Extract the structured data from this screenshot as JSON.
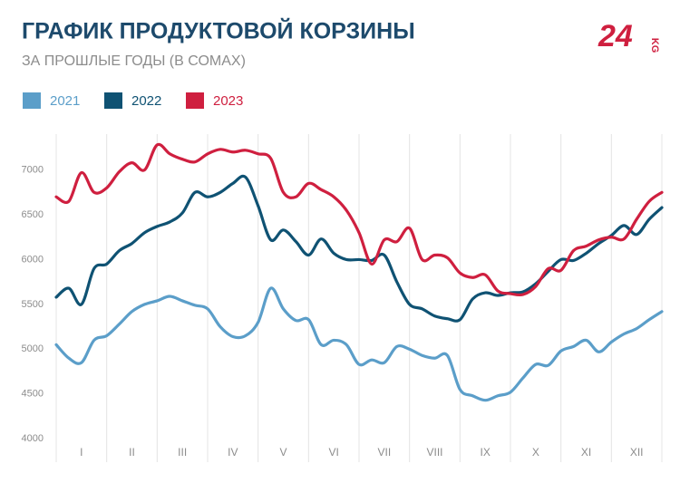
{
  "chart_data": {
    "type": "line",
    "title": "ГРАФИК ПРОДУКТОВОЙ КОРЗИНЫ",
    "subtitle": "ЗА ПРОШЛЫЕ ГОДЫ (В СОМАХ)",
    "logo": {
      "number": "24",
      "suffix": "KG"
    },
    "x": [
      0,
      0.25,
      0.5,
      0.75,
      1,
      1.25,
      1.5,
      1.75,
      2,
      2.25,
      2.5,
      2.75,
      3,
      3.25,
      3.5,
      3.75,
      4,
      4.25,
      4.5,
      4.75,
      5,
      5.25,
      5.5,
      5.75,
      6,
      6.25,
      6.5,
      6.75,
      7,
      7.25,
      7.5,
      7.75,
      8,
      8.25,
      8.5,
      8.75,
      9,
      9.25,
      9.5,
      9.75,
      10,
      10.25,
      10.5,
      10.75,
      11,
      11.25,
      11.5,
      11.75,
      12
    ],
    "xlim": [
      0,
      12
    ],
    "xticks": [
      {
        "value": 0.5,
        "label": "I"
      },
      {
        "value": 1.5,
        "label": "II"
      },
      {
        "value": 2.5,
        "label": "III"
      },
      {
        "value": 3.5,
        "label": "IV"
      },
      {
        "value": 4.5,
        "label": "V"
      },
      {
        "value": 5.5,
        "label": "VI"
      },
      {
        "value": 6.5,
        "label": "VII"
      },
      {
        "value": 7.5,
        "label": "VIII"
      },
      {
        "value": 8.5,
        "label": "IX"
      },
      {
        "value": 9.5,
        "label": "X"
      },
      {
        "value": 10.5,
        "label": "XI"
      },
      {
        "value": 11.5,
        "label": "XII"
      }
    ],
    "ylim": [
      3800,
      7400
    ],
    "yticks": [
      4000,
      4500,
      5000,
      5500,
      6000,
      6500,
      7000
    ],
    "series": [
      {
        "name": "2021",
        "color": "#5b9ec9",
        "values": [
          5050,
          4900,
          4850,
          5100,
          5150,
          5280,
          5420,
          5500,
          5540,
          5590,
          5540,
          5490,
          5450,
          5250,
          5140,
          5150,
          5300,
          5680,
          5450,
          5320,
          5330,
          5050,
          5100,
          5050,
          4830,
          4880,
          4850,
          5030,
          5000,
          4930,
          4900,
          4930,
          4550,
          4480,
          4430,
          4480,
          4520,
          4680,
          4830,
          4820,
          4980,
          5030,
          5100,
          4970,
          5080,
          5170,
          5230,
          5330,
          5420
        ]
      },
      {
        "name": "2022",
        "color": "#0f5273",
        "values": [
          5580,
          5680,
          5500,
          5900,
          5950,
          6100,
          6180,
          6300,
          6370,
          6420,
          6520,
          6750,
          6700,
          6750,
          6850,
          6920,
          6600,
          6220,
          6330,
          6200,
          6050,
          6230,
          6070,
          6000,
          6000,
          5990,
          6050,
          5750,
          5500,
          5450,
          5370,
          5340,
          5330,
          5560,
          5630,
          5600,
          5630,
          5640,
          5730,
          5870,
          6000,
          5990,
          6070,
          6180,
          6270,
          6380,
          6280,
          6450,
          6580
        ]
      },
      {
        "name": "2023",
        "color": "#cf1f3f",
        "values": [
          6700,
          6650,
          6970,
          6750,
          6800,
          6980,
          7080,
          7000,
          7280,
          7180,
          7120,
          7090,
          7180,
          7230,
          7200,
          7220,
          7180,
          7130,
          6750,
          6700,
          6850,
          6780,
          6700,
          6550,
          6300,
          5950,
          6220,
          6200,
          6350,
          6000,
          6050,
          6020,
          5850,
          5800,
          5830,
          5650,
          5620,
          5610,
          5700,
          5900,
          5880,
          6100,
          6150,
          6220,
          6250,
          6230,
          6450,
          6650,
          6750
        ]
      }
    ]
  }
}
